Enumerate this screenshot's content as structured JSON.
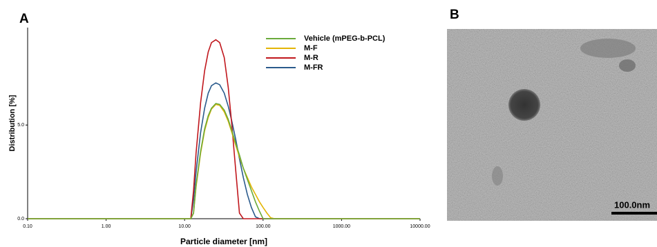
{
  "panels": {
    "a": "A",
    "b": "B"
  },
  "image": {
    "scale_bar": "100.0nm"
  },
  "chart_data": {
    "type": "line",
    "xlabel": "Particle diameter [nm]",
    "ylabel": "Distribution [%]",
    "log_x": true,
    "legend": "upper right",
    "x": [
      0.1,
      12,
      13,
      14,
      16,
      18,
      20,
      22,
      25,
      28,
      32,
      36,
      40,
      45,
      50,
      56,
      63,
      71,
      80,
      90,
      100,
      112,
      125,
      140,
      10000
    ],
    "series": [
      {
        "name": "Vehicle (mPEG-b-PCL)",
        "color": "#6aaa3a",
        "values": [
          0,
          0,
          0.3,
          1.8,
          3.6,
          4.8,
          5.5,
          5.9,
          6.15,
          6.1,
          5.8,
          5.3,
          4.7,
          4.0,
          3.4,
          2.7,
          2.1,
          1.5,
          0.9,
          0.4,
          0,
          0,
          0,
          0,
          0
        ]
      },
      {
        "name": "M-F",
        "color": "#e3b505",
        "values": [
          0,
          0,
          0.3,
          1.7,
          3.5,
          4.7,
          5.4,
          5.85,
          6.1,
          6.05,
          5.7,
          5.2,
          4.6,
          3.9,
          3.3,
          2.7,
          2.2,
          1.7,
          1.3,
          0.9,
          0.6,
          0.3,
          0.05,
          0,
          0
        ]
      },
      {
        "name": "M-R",
        "color": "#c0161c",
        "values": [
          0,
          0,
          1.5,
          3.5,
          6.2,
          7.9,
          8.9,
          9.4,
          9.55,
          9.4,
          8.6,
          7.0,
          5.0,
          2.5,
          0.3,
          0,
          0,
          0,
          0,
          0,
          0,
          0,
          0,
          0,
          0
        ]
      },
      {
        "name": "M-FR",
        "color": "#2a5a8c",
        "values": [
          0,
          0,
          1.0,
          2.5,
          4.6,
          5.9,
          6.7,
          7.1,
          7.25,
          7.15,
          6.7,
          6.0,
          5.2,
          4.2,
          3.2,
          2.2,
          1.3,
          0.6,
          0.1,
          0,
          0,
          0,
          0,
          0,
          0
        ]
      }
    ],
    "xlim": [
      0.1,
      10000
    ],
    "xticks": [
      {
        "value": 0.1,
        "label": "0.10"
      },
      {
        "value": 1,
        "label": "1.00"
      },
      {
        "value": 10,
        "label": "10.00"
      },
      {
        "value": 100,
        "label": "100.00"
      },
      {
        "value": 1000,
        "label": "1000.00"
      },
      {
        "value": 10000,
        "label": "10000.00"
      }
    ],
    "ylim": [
      0,
      10.2
    ],
    "yticks": [
      {
        "value": 0,
        "label": "0.0"
      },
      {
        "value": 5,
        "label": "5.0"
      }
    ]
  }
}
